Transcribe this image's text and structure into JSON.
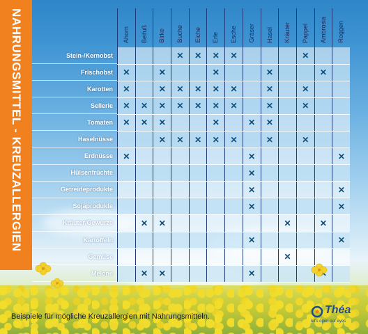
{
  "side_title": "NAHRUNGSMITTEL - KREUZALLERGIEN",
  "columns": [
    "Ahorn",
    "Beifuß",
    "Birke",
    "Buche",
    "Eiche",
    "Erle",
    "Esche",
    "Gräser",
    "Hasel",
    "Kräuter",
    "Pappel",
    "Ambrosia",
    "Roggen"
  ],
  "rows": [
    {
      "label": "Stein-/Kernobst",
      "marks": [
        0,
        0,
        0,
        1,
        1,
        1,
        1,
        0,
        0,
        0,
        1,
        0,
        0
      ]
    },
    {
      "label": "Frischobst",
      "marks": [
        1,
        0,
        1,
        0,
        0,
        1,
        0,
        0,
        1,
        0,
        0,
        1,
        0
      ]
    },
    {
      "label": "Karotten",
      "marks": [
        1,
        0,
        1,
        1,
        1,
        1,
        1,
        0,
        1,
        0,
        1,
        0,
        0
      ]
    },
    {
      "label": "Sellerie",
      "marks": [
        1,
        1,
        1,
        1,
        1,
        1,
        1,
        0,
        1,
        0,
        1,
        0,
        0
      ]
    },
    {
      "label": "Tomaten",
      "marks": [
        1,
        1,
        1,
        0,
        0,
        1,
        0,
        1,
        1,
        0,
        0,
        0,
        0
      ]
    },
    {
      "label": "Haselnüsse",
      "marks": [
        0,
        0,
        1,
        1,
        1,
        1,
        1,
        0,
        1,
        0,
        1,
        0,
        0
      ]
    },
    {
      "label": "Erdnüsse",
      "marks": [
        1,
        0,
        0,
        0,
        0,
        0,
        0,
        1,
        0,
        0,
        0,
        0,
        1
      ]
    },
    {
      "label": "Hülsenfrüchte",
      "marks": [
        0,
        0,
        0,
        0,
        0,
        0,
        0,
        1,
        0,
        0,
        0,
        0,
        0
      ]
    },
    {
      "label": "Getreideprodukte",
      "marks": [
        0,
        0,
        0,
        0,
        0,
        0,
        0,
        1,
        0,
        0,
        0,
        0,
        1
      ]
    },
    {
      "label": "Sojaprodukte",
      "marks": [
        0,
        0,
        0,
        0,
        0,
        0,
        0,
        1,
        0,
        0,
        0,
        0,
        1
      ]
    },
    {
      "label": "Kräuter/Gewürze",
      "marks": [
        0,
        1,
        1,
        0,
        0,
        0,
        0,
        0,
        0,
        1,
        0,
        1,
        0
      ]
    },
    {
      "label": "Kartoffeln",
      "marks": [
        0,
        0,
        0,
        0,
        0,
        0,
        0,
        1,
        0,
        0,
        0,
        0,
        1
      ]
    },
    {
      "label": "Gemüse",
      "marks": [
        0,
        0,
        0,
        0,
        0,
        0,
        0,
        0,
        0,
        1,
        0,
        0,
        0
      ]
    },
    {
      "label": "Melone",
      "marks": [
        0,
        1,
        1,
        0,
        0,
        0,
        0,
        1,
        0,
        0,
        0,
        1,
        0
      ]
    }
  ],
  "mark_symbol": "✕",
  "footer": "Beispiele für mögliche Kreuzallergien mit Nahrungsmitteln.",
  "logo": {
    "name": "Théa",
    "tagline": "let's open our eyes"
  },
  "colors": {
    "band": "#f0811e",
    "mark": "#0d4d7a",
    "grid_line": "#1e3c78"
  }
}
